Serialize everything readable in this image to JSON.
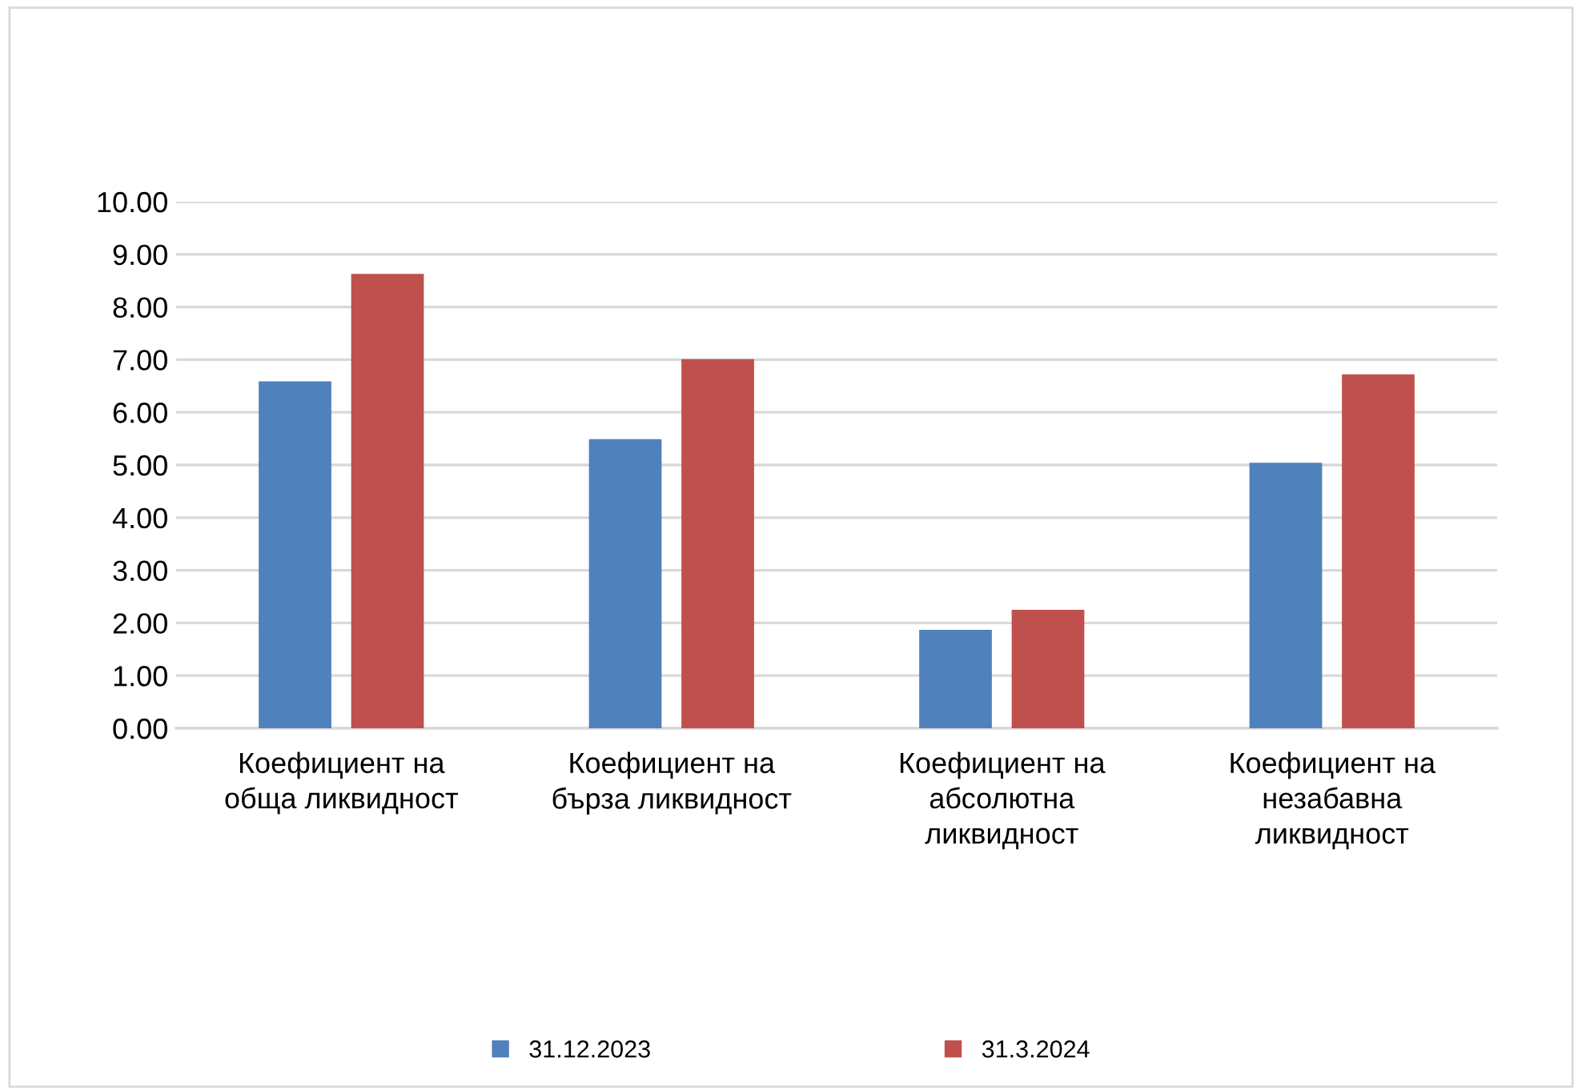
{
  "chart_data": {
    "type": "bar",
    "categories": [
      "Коефициент на обща ликвидност",
      "Коефициент на бърза ликвидност",
      "Коефициент на абсолютна ликвидност",
      "Коефициент на незабавна ликвидност"
    ],
    "series": [
      {
        "name": "31.12.2023",
        "color": "#4f81bd",
        "values": [
          6.59,
          5.49,
          1.87,
          5.04
        ]
      },
      {
        "name": "31.3.2024",
        "color": "#c0504d",
        "values": [
          8.63,
          7.01,
          2.25,
          6.72
        ]
      }
    ],
    "ylim": [
      0,
      10
    ],
    "yticks": [
      {
        "value": 0,
        "label": "0.00"
      },
      {
        "value": 1,
        "label": "1.00"
      },
      {
        "value": 2,
        "label": "2.00"
      },
      {
        "value": 3,
        "label": "3.00"
      },
      {
        "value": 4,
        "label": "4.00"
      },
      {
        "value": 5,
        "label": "5.00"
      },
      {
        "value": 6,
        "label": "6.00"
      },
      {
        "value": 7,
        "label": "7.00"
      },
      {
        "value": 8,
        "label": "8.00"
      },
      {
        "value": 9,
        "label": "9.00"
      },
      {
        "value": 10,
        "label": "10.00"
      }
    ],
    "grid": "y",
    "legend": "bottom"
  }
}
